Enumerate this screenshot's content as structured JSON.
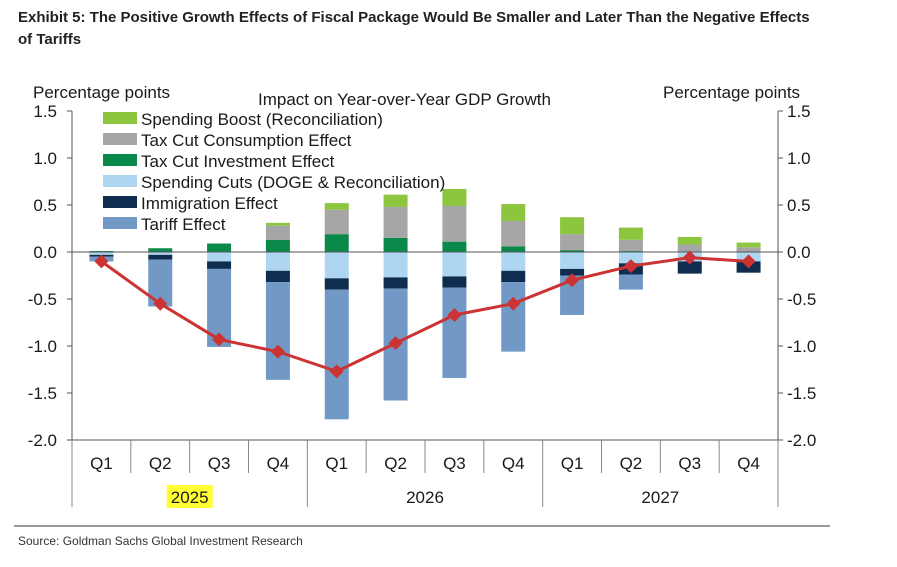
{
  "title": "Exhibit 5: The Positive Growth Effects of Fiscal Package Would Be Smaller and Later Than the Negative Effects of Tariffs",
  "source": "Source: Goldman Sachs Global Investment Research",
  "chart_data": {
    "type": "bar",
    "stacked": true,
    "title": "Impact on Year-over-Year GDP Growth",
    "ylabel_left": "Percentage points",
    "ylabel_right": "Percentage points",
    "ylim": [
      -2.0,
      1.5
    ],
    "yticks": [
      "-2.0",
      "-1.5",
      "-1.0",
      "-0.5",
      "0.0",
      "0.5",
      "1.0",
      "1.5"
    ],
    "ytick_values": [
      -2.0,
      -1.5,
      -1.0,
      -0.5,
      0.0,
      0.5,
      1.0,
      1.5
    ],
    "grid": false,
    "legend_position": "top-left",
    "categories": [
      "Q1",
      "Q2",
      "Q3",
      "Q4",
      "Q1",
      "Q2",
      "Q3",
      "Q4",
      "Q1",
      "Q2",
      "Q3",
      "Q4"
    ],
    "years": [
      {
        "label": "2025",
        "highlight": true,
        "span": 4
      },
      {
        "label": "2026",
        "highlight": false,
        "span": 4
      },
      {
        "label": "2027",
        "highlight": false,
        "span": 4
      }
    ],
    "highlight_color": "#ffff33",
    "positive_series": [
      {
        "name": "Tax Cut Investment Effect",
        "color": "#0a8a4a",
        "values": [
          0.01,
          0.04,
          0.09,
          0.13,
          0.19,
          0.15,
          0.11,
          0.06,
          0.02,
          0.01,
          0.0,
          0.0
        ]
      },
      {
        "name": "Tax Cut Consumption  Effect",
        "color": "#a6a6a6",
        "values": [
          0.0,
          0.0,
          0.0,
          0.15,
          0.26,
          0.33,
          0.38,
          0.27,
          0.17,
          0.12,
          0.08,
          0.05
        ]
      },
      {
        "name": "Spending Boost (Reconciliation)",
        "color": "#8cc63f",
        "values": [
          0.0,
          0.0,
          0.0,
          0.03,
          0.07,
          0.13,
          0.18,
          0.18,
          0.18,
          0.13,
          0.08,
          0.05
        ]
      }
    ],
    "negative_series": [
      {
        "name": "Spending Cuts (DOGE & Reconciliation)",
        "color": "#aed6f1",
        "values": [
          -0.03,
          -0.03,
          -0.1,
          -0.2,
          -0.28,
          -0.27,
          -0.26,
          -0.2,
          -0.18,
          -0.12,
          -0.1,
          -0.1
        ]
      },
      {
        "name": "Immigration Effect",
        "color": "#0f2e4f",
        "values": [
          -0.02,
          -0.05,
          -0.08,
          -0.12,
          -0.12,
          -0.12,
          -0.12,
          -0.12,
          -0.07,
          -0.12,
          -0.13,
          -0.12
        ]
      },
      {
        "name": "Tariff Effect",
        "color": "#7299c6",
        "values": [
          -0.05,
          -0.5,
          -0.83,
          -1.04,
          -1.38,
          -1.19,
          -0.96,
          -0.74,
          -0.42,
          -0.16,
          0.0,
          0.0
        ]
      }
    ],
    "legend_order": [
      "Spending Boost (Reconciliation)",
      "Tax Cut Consumption  Effect",
      "Tax Cut Investment Effect",
      "Spending Cuts (DOGE & Reconciliation)",
      "Immigration Effect",
      "Tariff Effect"
    ],
    "line": {
      "color": "#cc3333",
      "values": [
        -0.1,
        -0.55,
        -0.93,
        -1.06,
        -1.27,
        -0.97,
        -0.67,
        -0.55,
        -0.3,
        -0.15,
        -0.06,
        -0.1
      ]
    }
  }
}
